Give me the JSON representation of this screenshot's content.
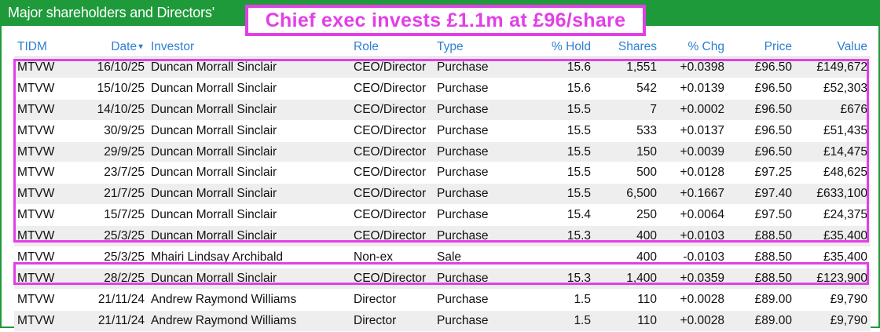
{
  "header": {
    "title": "Major shareholders and Directors'"
  },
  "callout": {
    "text": "Chief exec invests £1.1m at £96/share"
  },
  "colors": {
    "brand_green": "#1f9a3a",
    "header_link_blue": "#2f7fd0",
    "highlight_magenta": "#e23fe6"
  },
  "table": {
    "columns": [
      {
        "label": "TIDM",
        "sortable": true
      },
      {
        "label": "Date",
        "sortable": true,
        "sorted": "desc"
      },
      {
        "label": "Investor",
        "sortable": true
      },
      {
        "label": "Role",
        "sortable": true
      },
      {
        "label": "Type",
        "sortable": true
      },
      {
        "label": "% Hold",
        "sortable": true
      },
      {
        "label": "Shares",
        "sortable": true
      },
      {
        "label": "% Chg",
        "sortable": true
      },
      {
        "label": "Price",
        "sortable": true
      },
      {
        "label": "Value",
        "sortable": true
      }
    ],
    "sort_icon": "triangle-down-icon",
    "rows": [
      {
        "tidm": "MTVW",
        "date": "16/10/25",
        "investor": "Duncan Morrall Sinclair",
        "role": "CEO/Director",
        "type": "Purchase",
        "hold": "15.6",
        "shares": "1,551",
        "chg": "+0.0398",
        "price": "£96.50",
        "value": "£149,672"
      },
      {
        "tidm": "MTVW",
        "date": "15/10/25",
        "investor": "Duncan Morrall Sinclair",
        "role": "CEO/Director",
        "type": "Purchase",
        "hold": "15.6",
        "shares": "542",
        "chg": "+0.0139",
        "price": "£96.50",
        "value": "£52,303"
      },
      {
        "tidm": "MTVW",
        "date": "14/10/25",
        "investor": "Duncan Morrall Sinclair",
        "role": "CEO/Director",
        "type": "Purchase",
        "hold": "15.5",
        "shares": "7",
        "chg": "+0.0002",
        "price": "£96.50",
        "value": "£676"
      },
      {
        "tidm": "MTVW",
        "date": "30/9/25",
        "investor": "Duncan Morrall Sinclair",
        "role": "CEO/Director",
        "type": "Purchase",
        "hold": "15.5",
        "shares": "533",
        "chg": "+0.0137",
        "price": "£96.50",
        "value": "£51,435"
      },
      {
        "tidm": "MTVW",
        "date": "29/9/25",
        "investor": "Duncan Morrall Sinclair",
        "role": "CEO/Director",
        "type": "Purchase",
        "hold": "15.5",
        "shares": "150",
        "chg": "+0.0039",
        "price": "£96.50",
        "value": "£14,475"
      },
      {
        "tidm": "MTVW",
        "date": "23/7/25",
        "investor": "Duncan Morrall Sinclair",
        "role": "CEO/Director",
        "type": "Purchase",
        "hold": "15.5",
        "shares": "500",
        "chg": "+0.0128",
        "price": "£97.25",
        "value": "£48,625"
      },
      {
        "tidm": "MTVW",
        "date": "21/7/25",
        "investor": "Duncan Morrall Sinclair",
        "role": "CEO/Director",
        "type": "Purchase",
        "hold": "15.5",
        "shares": "6,500",
        "chg": "+0.1667",
        "price": "£97.40",
        "value": "£633,100"
      },
      {
        "tidm": "MTVW",
        "date": "15/7/25",
        "investor": "Duncan Morrall Sinclair",
        "role": "CEO/Director",
        "type": "Purchase",
        "hold": "15.4",
        "shares": "250",
        "chg": "+0.0064",
        "price": "£97.50",
        "value": "£24,375"
      },
      {
        "tidm": "MTVW",
        "date": "25/3/25",
        "investor": "Duncan Morrall Sinclair",
        "role": "CEO/Director",
        "type": "Purchase",
        "hold": "15.3",
        "shares": "400",
        "chg": "+0.0103",
        "price": "£88.50",
        "value": "£35,400"
      },
      {
        "tidm": "MTVW",
        "date": "25/3/25",
        "investor": "Mhairi Lindsay Archibald",
        "role": "Non-ex",
        "type": "Sale",
        "hold": "",
        "shares": "400",
        "chg": "-0.0103",
        "price": "£88.50",
        "value": "£35,400"
      },
      {
        "tidm": "MTVW",
        "date": "28/2/25",
        "investor": "Duncan Morrall Sinclair",
        "role": "CEO/Director",
        "type": "Purchase",
        "hold": "15.3",
        "shares": "1,400",
        "chg": "+0.0359",
        "price": "£88.50",
        "value": "£123,900"
      },
      {
        "tidm": "MTVW",
        "date": "21/11/24",
        "investor": "Andrew Raymond Williams",
        "role": "Director",
        "type": "Purchase",
        "hold": "1.5",
        "shares": "110",
        "chg": "+0.0028",
        "price": "£89.00",
        "value": "£9,790"
      },
      {
        "tidm": "MTVW",
        "date": "21/11/24",
        "investor": "Andrew Raymond Williams",
        "role": "Director",
        "type": "Purchase",
        "hold": "1.5",
        "shares": "110",
        "chg": "+0.0028",
        "price": "£89.00",
        "value": "£9,790"
      }
    ]
  }
}
